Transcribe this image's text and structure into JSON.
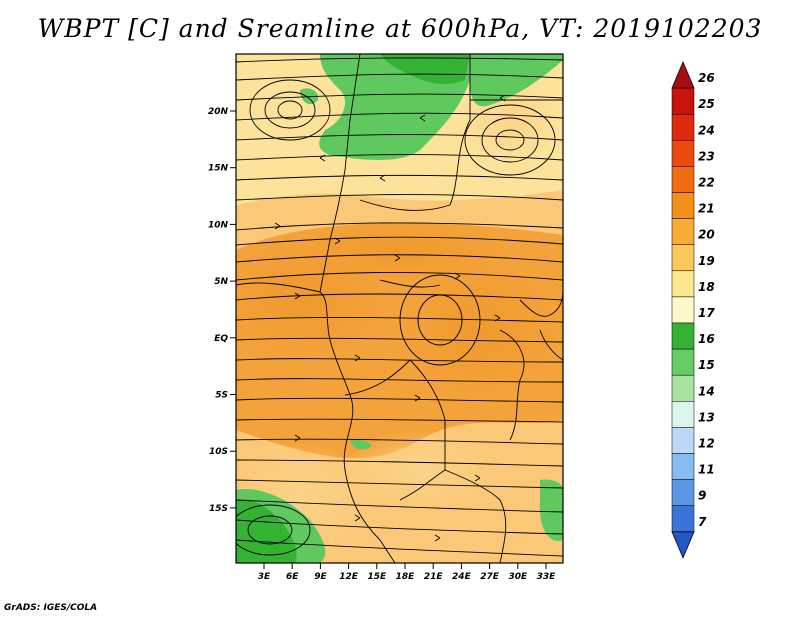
{
  "title": "WBPT [C] and Sreamline at 600hPa, VT: 2019102203",
  "footer": "GrADS: IGES/COLA",
  "map": {
    "lat_labels": [
      "20N",
      "15N",
      "10N",
      "5N",
      "EQ",
      "5S",
      "10S",
      "15S"
    ],
    "lon_labels": [
      "3E",
      "6E",
      "9E",
      "12E",
      "15E",
      "18E",
      "21E",
      "24E",
      "27E",
      "30E",
      "33E"
    ]
  },
  "colorbar": {
    "levels": [
      "26",
      "25",
      "24",
      "23",
      "22",
      "21",
      "20",
      "19",
      "18",
      "17",
      "16",
      "15",
      "14",
      "13",
      "12",
      "11",
      "9",
      "7"
    ],
    "colors": [
      "#a50f0f",
      "#c8140c",
      "#dc2a0c",
      "#ea4a10",
      "#f06c12",
      "#f4901a",
      "#f8ac32",
      "#fcc85c",
      "#fde88e",
      "#fff8c8",
      "#33b233",
      "#66cc66",
      "#a8e4a0",
      "#dcf4ec",
      "#bcd8f8",
      "#86bcf0",
      "#5a98e4",
      "#3a74d8",
      "#2456c8"
    ],
    "top_color": "#a50f0f",
    "bottom_color": "#2456c8"
  }
}
